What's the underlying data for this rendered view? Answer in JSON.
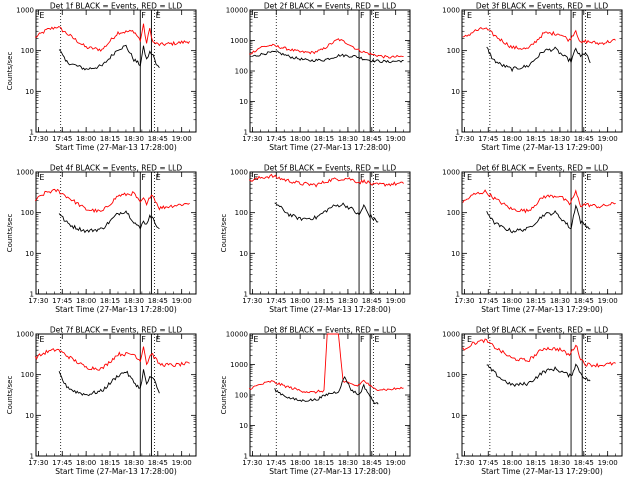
{
  "chart_data": [
    {
      "type": "line",
      "title": "Det 1f BLACK = Events, RED = LLD",
      "ylabel": "Counts/sec",
      "xlabel": "Start Time (27-Mar-13 17:28:00)",
      "ylim": [
        1,
        1000
      ],
      "yscale": "log",
      "xticks": [
        "17:30",
        "17:45",
        "18:00",
        "18:15",
        "18:30",
        "18:45",
        "19:00"
      ],
      "vlines": {
        "solid": [
          "18:34",
          "18:41"
        ],
        "dotted": [
          "17:44",
          "18:43"
        ],
        "flags": [
          {
            "label": "E",
            "at": "17:30"
          },
          {
            "label": "F",
            "at": "18:34"
          },
          {
            "label": "E",
            "at": "18:43"
          }
        ]
      },
      "series": [
        {
          "color": "#ff0000",
          "x": [
            "17:28",
            "17:35",
            "17:42",
            "17:50",
            "18:00",
            "18:10",
            "18:20",
            "18:30",
            "18:34",
            "18:36",
            "18:38",
            "18:40",
            "18:42",
            "18:46",
            "18:55",
            "19:05"
          ],
          "values": [
            210,
            320,
            390,
            230,
            120,
            105,
            280,
            300,
            180,
            420,
            150,
            350,
            160,
            140,
            150,
            170
          ]
        },
        {
          "color": "#000000",
          "x": [
            "17:43",
            "17:47",
            "17:52",
            "18:00",
            "18:10",
            "18:20",
            "18:25",
            "18:30",
            "18:34",
            "18:36",
            "18:38",
            "18:40",
            "18:42",
            "18:44",
            "18:46"
          ],
          "values": [
            110,
            55,
            45,
            35,
            42,
            110,
            130,
            60,
            45,
            120,
            60,
            90,
            80,
            45,
            38
          ]
        }
      ]
    },
    {
      "type": "line",
      "title": "Det 2f BLACK = Events, RED = LLD",
      "ylabel": "",
      "xlabel": "Start Time (27-Mar-13 17:28:00)",
      "ylim": [
        1,
        10000
      ],
      "yscale": "log",
      "xticks": [
        "17:30",
        "17:45",
        "18:00",
        "18:15",
        "18:30",
        "18:45",
        "19:00"
      ],
      "vlines": {
        "solid": [
          "18:37",
          "18:44"
        ],
        "dotted": [
          "17:45",
          "18:46"
        ],
        "flags": [
          {
            "label": "E",
            "at": "17:30"
          },
          {
            "label": "F",
            "at": "18:37"
          },
          {
            "label": "E",
            "at": "18:46"
          }
        ]
      },
      "series": [
        {
          "color": "#ff0000",
          "x": [
            "17:28",
            "17:35",
            "17:42",
            "17:50",
            "18:00",
            "18:08",
            "18:14",
            "18:18",
            "18:24",
            "18:30",
            "18:36",
            "18:40",
            "18:45",
            "18:55",
            "19:05"
          ],
          "values": [
            350,
            600,
            700,
            560,
            420,
            400,
            500,
            700,
            1100,
            800,
            500,
            420,
            350,
            280,
            300
          ]
        },
        {
          "color": "#000000",
          "x": [
            "17:30",
            "17:38",
            "17:45",
            "17:55",
            "18:05",
            "18:15",
            "18:25",
            "18:35",
            "18:40",
            "18:45",
            "18:55",
            "19:05"
          ],
          "values": [
            300,
            380,
            420,
            280,
            220,
            230,
            330,
            300,
            250,
            220,
            200,
            220
          ]
        }
      ]
    },
    {
      "type": "line",
      "title": "Det 3f BLACK = Events, RED = LLD",
      "ylabel": "",
      "xlabel": "Start Time (27-Mar-13 17:29:00)",
      "ylim": [
        1,
        1000
      ],
      "yscale": "log",
      "xticks": [
        "17:30",
        "17:45",
        "18:00",
        "18:15",
        "18:30",
        "18:45",
        "19:00"
      ],
      "vlines": {
        "solid": [
          "18:37",
          "18:44"
        ],
        "dotted": [
          "17:46",
          "18:46"
        ],
        "flags": [
          {
            "label": "E",
            "at": "17:31"
          },
          {
            "label": "F",
            "at": "18:37"
          },
          {
            "label": "E",
            "at": "18:46"
          }
        ]
      },
      "series": [
        {
          "color": "#ff0000",
          "x": [
            "17:29",
            "17:36",
            "17:43",
            "17:50",
            "18:00",
            "18:10",
            "18:20",
            "18:30",
            "18:36",
            "18:40",
            "18:43",
            "18:46",
            "18:55",
            "19:05"
          ],
          "values": [
            200,
            300,
            360,
            220,
            120,
            110,
            270,
            260,
            180,
            320,
            150,
            170,
            150,
            180
          ]
        },
        {
          "color": "#000000",
          "x": [
            "17:44",
            "17:48",
            "17:53",
            "18:00",
            "18:10",
            "18:20",
            "18:27",
            "18:33",
            "18:37",
            "18:40",
            "18:43",
            "18:46",
            "18:49"
          ],
          "values": [
            120,
            60,
            45,
            35,
            42,
            100,
            110,
            70,
            55,
            110,
            70,
            90,
            50
          ]
        }
      ]
    },
    {
      "type": "line",
      "title": "Det 4f BLACK = Events, RED = LLD",
      "ylabel": "Counts/sec",
      "xlabel": "Start Time (27-Mar-13 17:28:00)",
      "ylim": [
        1,
        1000
      ],
      "yscale": "log",
      "xticks": [
        "17:30",
        "17:45",
        "18:00",
        "18:15",
        "18:30",
        "18:45",
        "19:00"
      ],
      "vlines": {
        "solid": [
          "18:34",
          "18:41"
        ],
        "dotted": [
          "17:44",
          "18:43"
        ],
        "flags": [
          {
            "label": "E",
            "at": "17:30"
          },
          {
            "label": "F",
            "at": "18:34"
          },
          {
            "label": "E",
            "at": "18:43"
          }
        ]
      },
      "series": [
        {
          "color": "#ff0000",
          "x": [
            "17:28",
            "17:35",
            "17:42",
            "17:50",
            "18:00",
            "18:10",
            "18:20",
            "18:30",
            "18:34",
            "18:36",
            "18:38",
            "18:41",
            "18:46",
            "18:55",
            "19:05"
          ],
          "values": [
            200,
            320,
            350,
            220,
            120,
            105,
            260,
            300,
            170,
            230,
            150,
            300,
            130,
            150,
            170
          ]
        },
        {
          "color": "#000000",
          "x": [
            "17:43",
            "17:47",
            "17:52",
            "18:00",
            "18:10",
            "18:20",
            "18:25",
            "18:30",
            "18:34",
            "18:36",
            "18:38",
            "18:40",
            "18:43",
            "18:46"
          ],
          "values": [
            100,
            60,
            45,
            35,
            40,
            95,
            110,
            60,
            40,
            65,
            50,
            90,
            60,
            40
          ]
        }
      ]
    },
    {
      "type": "line",
      "title": "Det 5f BLACK = Events, RED = LLD",
      "ylabel": "Counts/sec",
      "xlabel": "Start Time (27-Mar-13 17:28:00)",
      "ylim": [
        1,
        1000
      ],
      "yscale": "log",
      "xticks": [
        "17:30",
        "17:45",
        "18:00",
        "18:15",
        "18:30",
        "18:45",
        "19:00"
      ],
      "vlines": {
        "solid": [
          "18:37",
          "18:44"
        ],
        "dotted": [
          "17:45",
          "18:46"
        ],
        "flags": [
          {
            "label": "E",
            "at": "17:30"
          },
          {
            "label": "F",
            "at": "18:37"
          },
          {
            "label": "E",
            "at": "18:46"
          }
        ]
      },
      "series": [
        {
          "color": "#ff0000",
          "x": [
            "17:28",
            "17:35",
            "17:42",
            "17:50",
            "18:00",
            "18:10",
            "18:20",
            "18:30",
            "18:37",
            "18:41",
            "18:46",
            "18:55",
            "19:05"
          ],
          "values": [
            600,
            720,
            800,
            650,
            520,
            480,
            650,
            700,
            560,
            600,
            480,
            500,
            520
          ]
        },
        {
          "color": "#000000",
          "x": [
            "17:44",
            "17:48",
            "17:53",
            "18:00",
            "18:10",
            "18:20",
            "18:27",
            "18:33",
            "18:37",
            "18:40",
            "18:43",
            "18:46",
            "18:49"
          ],
          "values": [
            180,
            130,
            90,
            70,
            75,
            140,
            160,
            120,
            85,
            150,
            90,
            70,
            60
          ]
        }
      ]
    },
    {
      "type": "line",
      "title": "Det 6f BLACK = Events, RED = LLD",
      "ylabel": "",
      "xlabel": "Start Time (27-Mar-13 17:29:00)",
      "ylim": [
        1,
        1000
      ],
      "yscale": "log",
      "xticks": [
        "17:30",
        "17:45",
        "18:00",
        "18:15",
        "18:30",
        "18:45",
        "19:00"
      ],
      "vlines": {
        "solid": [
          "18:37",
          "18:44"
        ],
        "dotted": [
          "17:46",
          "18:46"
        ],
        "flags": [
          {
            "label": "E",
            "at": "17:31"
          },
          {
            "label": "F",
            "at": "18:37"
          },
          {
            "label": "E",
            "at": "18:46"
          }
        ]
      },
      "series": [
        {
          "color": "#ff0000",
          "x": [
            "17:29",
            "17:36",
            "17:43",
            "17:50",
            "18:00",
            "18:10",
            "18:20",
            "18:30",
            "18:36",
            "18:40",
            "18:43",
            "18:46",
            "18:55",
            "19:05"
          ],
          "values": [
            180,
            280,
            330,
            210,
            120,
            110,
            250,
            260,
            160,
            320,
            150,
            160,
            140,
            170
          ]
        },
        {
          "color": "#000000",
          "x": [
            "17:44",
            "17:48",
            "17:53",
            "18:00",
            "18:10",
            "18:20",
            "18:27",
            "18:33",
            "18:37",
            "18:40",
            "18:43",
            "18:46",
            "18:49"
          ],
          "values": [
            110,
            60,
            45,
            35,
            40,
            90,
            100,
            60,
            40,
            160,
            60,
            50,
            40
          ]
        }
      ]
    },
    {
      "type": "line",
      "title": "Det 7f BLACK = Events, RED = LLD",
      "ylabel": "Counts/sec",
      "xlabel": "Start Time (27-Mar-13 17:28:00)",
      "ylim": [
        1,
        1000
      ],
      "yscale": "log",
      "xticks": [
        "17:30",
        "17:45",
        "18:00",
        "18:15",
        "18:30",
        "18:45",
        "19:00"
      ],
      "vlines": {
        "solid": [
          "18:34",
          "18:41"
        ],
        "dotted": [
          "17:44",
          "18:43"
        ],
        "flags": [
          {
            "label": "E",
            "at": "17:30"
          },
          {
            "label": "F",
            "at": "18:34"
          },
          {
            "label": "E",
            "at": "18:43"
          }
        ]
      },
      "series": [
        {
          "color": "#ff0000",
          "x": [
            "17:28",
            "17:35",
            "17:42",
            "17:50",
            "18:00",
            "18:10",
            "18:20",
            "18:30",
            "18:34",
            "18:36",
            "18:38",
            "18:41",
            "18:46",
            "18:55",
            "19:05"
          ],
          "values": [
            260,
            360,
            420,
            260,
            150,
            140,
            320,
            320,
            220,
            520,
            180,
            340,
            180,
            170,
            190
          ]
        },
        {
          "color": "#000000",
          "x": [
            "17:43",
            "17:47",
            "17:52",
            "18:00",
            "18:10",
            "18:20",
            "18:25",
            "18:30",
            "18:34",
            "18:36",
            "18:38",
            "18:40",
            "18:43",
            "18:46"
          ],
          "values": [
            110,
            55,
            40,
            32,
            40,
            95,
            120,
            65,
            45,
            130,
            55,
            90,
            70,
            35
          ]
        }
      ]
    },
    {
      "type": "line",
      "title": "Det 8f BLACK = Events, RED = LLD",
      "ylabel": "Counts/sec",
      "xlabel": "Start Time (27-Mar-13 17:28:00)",
      "ylim": [
        1,
        10000
      ],
      "yscale": "log",
      "xticks": [
        "17:30",
        "17:45",
        "18:00",
        "18:15",
        "18:30",
        "18:45",
        "19:00"
      ],
      "vlines": {
        "solid": [
          "18:37",
          "18:44"
        ],
        "dotted": [
          "17:45",
          "18:46"
        ],
        "flags": [
          {
            "label": "E",
            "at": "17:30"
          },
          {
            "label": "F",
            "at": "18:37"
          },
          {
            "label": "E",
            "at": "18:46"
          }
        ]
      },
      "series": [
        {
          "color": "#ff0000",
          "x": [
            "17:28",
            "17:35",
            "17:42",
            "17:50",
            "18:00",
            "18:08",
            "18:15",
            "18:17",
            "18:24",
            "18:27",
            "18:30",
            "18:36",
            "18:40",
            "18:46",
            "18:55",
            "19:05"
          ],
          "values": [
            160,
            220,
            280,
            200,
            140,
            120,
            140,
            10000,
            10000,
            280,
            240,
            200,
            300,
            160,
            150,
            170
          ]
        },
        {
          "color": "#000000",
          "x": [
            "17:44",
            "17:48",
            "17:53",
            "18:00",
            "18:10",
            "18:18",
            "18:24",
            "18:28",
            "18:32",
            "18:37",
            "18:40",
            "18:43",
            "18:46",
            "18:49"
          ],
          "values": [
            150,
            110,
            80,
            65,
            70,
            110,
            130,
            400,
            150,
            100,
            200,
            110,
            60,
            50
          ]
        }
      ]
    },
    {
      "type": "line",
      "title": "Det 9f BLACK = Events, RED = LLD",
      "ylabel": "",
      "xlabel": "Start Time (27-Mar-13 17:29:00)",
      "ylim": [
        1,
        1000
      ],
      "yscale": "log",
      "xticks": [
        "17:30",
        "17:45",
        "18:00",
        "18:15",
        "18:30",
        "18:45",
        "19:00"
      ],
      "vlines": {
        "solid": [
          "18:37",
          "18:44"
        ],
        "dotted": [
          "17:46",
          "18:46"
        ],
        "flags": [
          {
            "label": "E",
            "at": "17:31"
          },
          {
            "label": "F",
            "at": "18:37"
          },
          {
            "label": "E",
            "at": "18:46"
          }
        ]
      },
      "series": [
        {
          "color": "#ff0000",
          "x": [
            "17:29",
            "17:36",
            "17:43",
            "17:50",
            "18:00",
            "18:10",
            "18:20",
            "18:30",
            "18:36",
            "18:40",
            "18:43",
            "18:46",
            "18:55",
            "19:05"
          ],
          "values": [
            420,
            600,
            700,
            450,
            250,
            220,
            450,
            420,
            300,
            550,
            250,
            180,
            170,
            190
          ]
        },
        {
          "color": "#000000",
          "x": [
            "17:44",
            "17:48",
            "17:53",
            "18:00",
            "18:10",
            "18:20",
            "18:27",
            "18:33",
            "18:37",
            "18:40",
            "18:43",
            "18:46",
            "18:49"
          ],
          "values": [
            170,
            120,
            80,
            55,
            60,
            120,
            140,
            110,
            90,
            180,
            110,
            80,
            70
          ]
        }
      ]
    }
  ]
}
